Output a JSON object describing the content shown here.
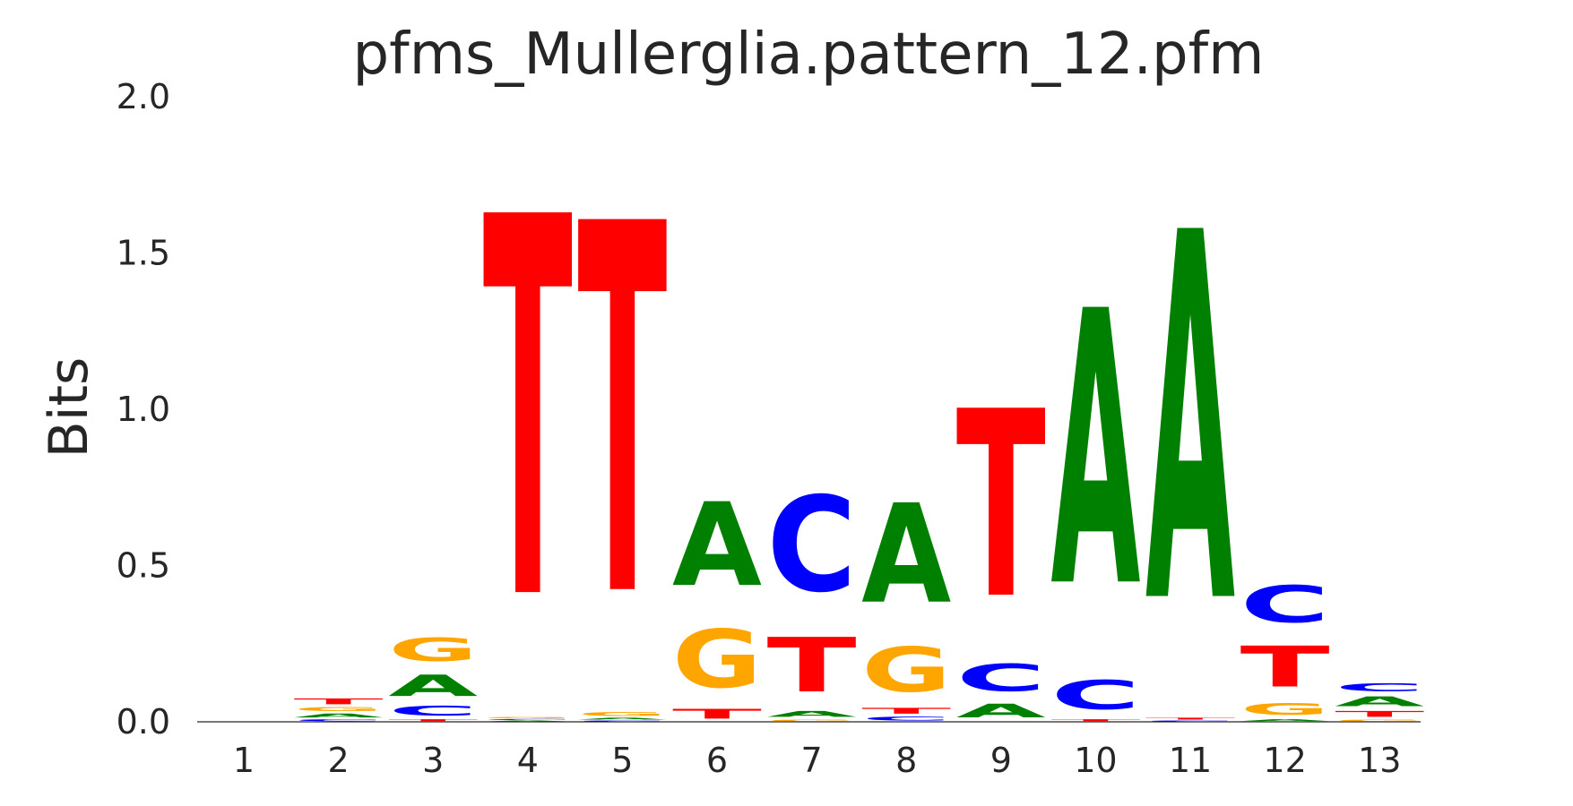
{
  "chart_data": {
    "type": "sequence-logo",
    "title": "pfms_Mullerglia.pattern_12.pfm",
    "xlabel": "",
    "ylabel": "Bits",
    "ylim": [
      0,
      2.0
    ],
    "yticks": [
      "0.0",
      "0.5",
      "1.0",
      "1.5",
      "2.0"
    ],
    "positions": [
      "1",
      "2",
      "3",
      "4",
      "5",
      "6",
      "7",
      "8",
      "9",
      "10",
      "11",
      "12",
      "13"
    ],
    "colors": {
      "A": "#008000",
      "C": "#0000ff",
      "G": "#ffa500",
      "T": "#ff0000"
    },
    "grid": false,
    "stacks": [
      [],
      [
        {
          "base": "C",
          "bits": 0.01
        },
        {
          "base": "A",
          "bits": 0.02
        },
        {
          "base": "G",
          "bits": 0.02
        },
        {
          "base": "T",
          "bits": 0.03
        }
      ],
      [
        {
          "base": "T",
          "bits": 0.01
        },
        {
          "base": "C",
          "bits": 0.05
        },
        {
          "base": "A",
          "bits": 0.11
        },
        {
          "base": "G",
          "bits": 0.12
        }
      ],
      [
        {
          "base": "A",
          "bits": 0.005
        },
        {
          "base": "C",
          "bits": 0.005
        },
        {
          "base": "G",
          "bits": 0.005
        },
        {
          "base": "T",
          "bits": 1.95
        }
      ],
      [
        {
          "base": "C",
          "bits": 0.005
        },
        {
          "base": "A",
          "bits": 0.01
        },
        {
          "base": "G",
          "bits": 0.02
        },
        {
          "base": "T",
          "bits": 1.9
        }
      ],
      [
        {
          "base": "T",
          "bits": 0.05
        },
        {
          "base": "G",
          "bits": 0.3
        },
        {
          "base": "A",
          "bits": 0.43
        }
      ],
      [
        {
          "base": "G",
          "bits": 0.01
        },
        {
          "base": "A",
          "bits": 0.03
        },
        {
          "base": "T",
          "bits": 0.28
        },
        {
          "base": "C",
          "bits": 0.49
        }
      ],
      [
        {
          "base": "C",
          "bits": 0.02
        },
        {
          "base": "T",
          "bits": 0.03
        },
        {
          "base": "G",
          "bits": 0.23
        },
        {
          "base": "A",
          "bits": 0.51
        }
      ],
      [
        {
          "base": "A",
          "bits": 0.07
        },
        {
          "base": "C",
          "bits": 0.14
        },
        {
          "base": "T",
          "bits": 0.96
        }
      ],
      [
        {
          "base": "T",
          "bits": 0.01
        },
        {
          "base": "C",
          "bits": 0.15
        },
        {
          "base": "A",
          "bits": 1.41
        }
      ],
      [
        {
          "base": "C",
          "bits": 0.005
        },
        {
          "base": "T",
          "bits": 0.01
        },
        {
          "base": "A",
          "bits": 1.89
        }
      ],
      [
        {
          "base": "A",
          "bits": 0.01
        },
        {
          "base": "G",
          "bits": 0.06
        },
        {
          "base": "T",
          "bits": 0.21
        },
        {
          "base": "C",
          "bits": 0.19
        }
      ],
      [
        {
          "base": "G",
          "bits": 0.01
        },
        {
          "base": "T",
          "bits": 0.03
        },
        {
          "base": "A",
          "bits": 0.05
        },
        {
          "base": "C",
          "bits": 0.04
        }
      ]
    ]
  }
}
